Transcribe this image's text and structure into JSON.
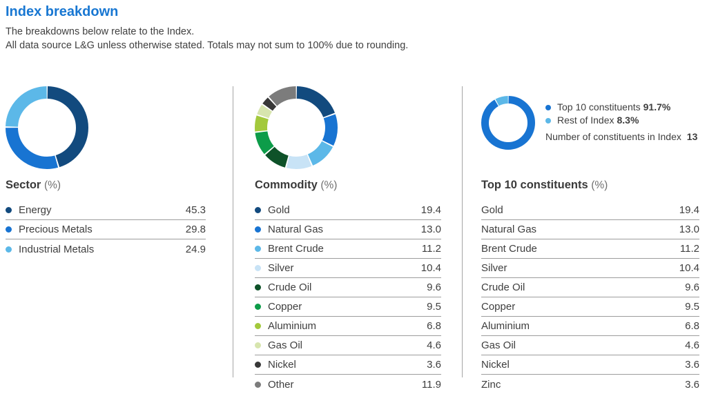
{
  "header": {
    "title": "Index breakdown",
    "subtitle_line1": "The breakdowns below relate to the Index.",
    "subtitle_line2": "All data source L&G unless otherwise stated. Totals may not sum to 100% due to rounding."
  },
  "colors": {
    "accent_blue": "#1877d2",
    "navy": "#124a7e",
    "blue": "#1874d2",
    "light_blue": "#5cb8e8",
    "pale_blue": "#c8e3f6",
    "dark_green": "#0e5229",
    "green": "#0d9c49",
    "lime": "#a3c93c",
    "pale_green": "#d7e5ae",
    "dark_gray": "#383838",
    "gray": "#7c7c7c",
    "divider": "#a5a5a5"
  },
  "panels": {
    "sector": {
      "title": "Sector",
      "title_suffix": "(%)",
      "show_dots": true,
      "rows": [
        {
          "label": "Energy",
          "value": "45.3",
          "color": "#124a7e"
        },
        {
          "label": "Precious Metals",
          "value": "29.8",
          "color": "#1874d2"
        },
        {
          "label": "Industrial Metals",
          "value": "24.9",
          "color": "#5cb8e8"
        }
      ]
    },
    "commodity": {
      "title": "Commodity",
      "title_suffix": "(%)",
      "show_dots": true,
      "rows": [
        {
          "label": "Gold",
          "value": "19.4",
          "color": "#124a7e"
        },
        {
          "label": "Natural Gas",
          "value": "13.0",
          "color": "#1874d2"
        },
        {
          "label": "Brent Crude",
          "value": "11.2",
          "color": "#5cb8e8"
        },
        {
          "label": "Silver",
          "value": "10.4",
          "color": "#c8e3f6"
        },
        {
          "label": "Crude Oil",
          "value": "9.6",
          "color": "#0e5229"
        },
        {
          "label": "Copper",
          "value": "9.5",
          "color": "#0d9c49"
        },
        {
          "label": "Aluminium",
          "value": "6.8",
          "color": "#a3c93c"
        },
        {
          "label": "Gas Oil",
          "value": "4.6",
          "color": "#d7e5ae"
        },
        {
          "label": "Nickel",
          "value": "3.6",
          "color": "#383838"
        },
        {
          "label": "Other",
          "value": "11.9",
          "color": "#7c7c7c"
        }
      ]
    },
    "top10": {
      "title": "Top 10 constituents",
      "title_suffix": "(%)",
      "show_dots": false,
      "legend": [
        {
          "text": "Top 10 constituents",
          "value": "91.7%",
          "color": "#1874d2"
        },
        {
          "text": "Rest of Index",
          "value": "8.3%",
          "color": "#5cb8e8"
        }
      ],
      "note_text": "Number of constituents in Index",
      "note_value": "13",
      "rows": [
        {
          "label": "Gold",
          "value": "19.4"
        },
        {
          "label": "Natural Gas",
          "value": "13.0"
        },
        {
          "label": "Brent Crude",
          "value": "11.2"
        },
        {
          "label": "Silver",
          "value": "10.4"
        },
        {
          "label": "Crude Oil",
          "value": "9.6"
        },
        {
          "label": "Copper",
          "value": "9.5"
        },
        {
          "label": "Aluminium",
          "value": "6.8"
        },
        {
          "label": "Gas Oil",
          "value": "4.6"
        },
        {
          "label": "Nickel",
          "value": "3.6"
        },
        {
          "label": "Zinc",
          "value": "3.6"
        }
      ]
    }
  },
  "chart_data": [
    {
      "type": "pie",
      "title": "Sector (%)",
      "labels": [
        "Energy",
        "Precious Metals",
        "Industrial Metals"
      ],
      "values": [
        45.3,
        29.8,
        24.9
      ],
      "colors": [
        "#124a7e",
        "#1874d2",
        "#5cb8e8"
      ],
      "donut": true,
      "start_angle": "top",
      "direction": "clockwise"
    },
    {
      "type": "pie",
      "title": "Commodity (%)",
      "labels": [
        "Gold",
        "Natural Gas",
        "Brent Crude",
        "Silver",
        "Crude Oil",
        "Copper",
        "Aluminium",
        "Gas Oil",
        "Nickel",
        "Other"
      ],
      "values": [
        19.4,
        13.0,
        11.2,
        10.4,
        9.6,
        9.5,
        6.8,
        4.6,
        3.6,
        11.9
      ],
      "colors": [
        "#124a7e",
        "#1874d2",
        "#5cb8e8",
        "#c8e3f6",
        "#0e5229",
        "#0d9c49",
        "#a3c93c",
        "#d7e5ae",
        "#383838",
        "#7c7c7c"
      ],
      "donut": true,
      "start_angle": "top",
      "direction": "clockwise"
    },
    {
      "type": "pie",
      "title": "Top 10 constituents vs rest of Index (%)",
      "labels": [
        "Top 10 constituents",
        "Rest of Index"
      ],
      "values": [
        91.7,
        8.3
      ],
      "colors": [
        "#1874d2",
        "#5cb8e8"
      ],
      "donut": true,
      "start_angle": "top",
      "direction": "clockwise"
    }
  ]
}
